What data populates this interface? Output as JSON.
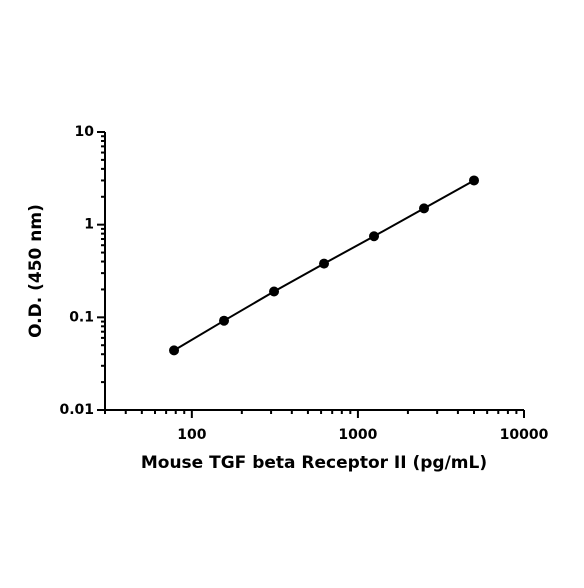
{
  "chart_data": {
    "type": "line",
    "x_label": "Mouse TGF beta Receptor II (pg/mL)",
    "y_label": "O.D. (450 nm)",
    "x": [
      78.125,
      156.25,
      312.5,
      625,
      1250,
      2500,
      5000
    ],
    "series": [
      {
        "color": "#000000",
        "values": [
          0.044,
          0.092,
          0.19,
          0.38,
          0.75,
          1.5,
          3.0
        ]
      }
    ],
    "x_log": true,
    "y_log": true,
    "xlim": [
      30,
      10000
    ],
    "ylim": [
      0.01,
      10
    ],
    "xticks": [
      100,
      1000,
      10000
    ],
    "yticks": [
      0.01,
      0.1,
      1,
      10
    ],
    "markers": true
  }
}
